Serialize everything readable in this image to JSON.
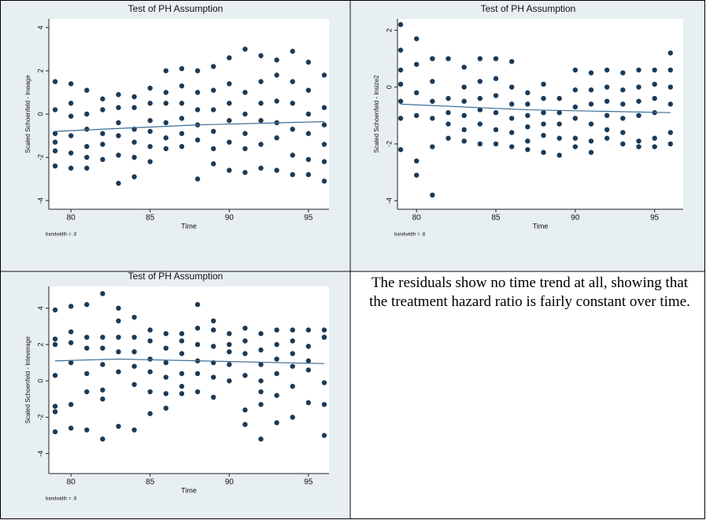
{
  "chart_data": [
    {
      "type": "scatter",
      "title": "Test of PH Assumption",
      "x_label": "Time",
      "y_label": "Scaled Schoenfeld - lnwage",
      "note": "bandwidth = .8",
      "color": "#1c3a56",
      "line_color": "#3a6c96",
      "xlim": [
        78.6,
        96.3
      ],
      "ylim": [
        -4.4,
        4.4
      ],
      "xticks": [
        80,
        85,
        90,
        95
      ],
      "yticks": [
        -4,
        -2,
        0,
        2,
        4
      ],
      "x": [
        79,
        79,
        79,
        79,
        79,
        79,
        80,
        80,
        80,
        80,
        80,
        80,
        81,
        81,
        81,
        81,
        81,
        81,
        82,
        82,
        82,
        82,
        82,
        83,
        83,
        83,
        83,
        83,
        83,
        84,
        84,
        84,
        84,
        84,
        84,
        85,
        85,
        85,
        85,
        85,
        85,
        86,
        86,
        86,
        86,
        86,
        86,
        87,
        87,
        87,
        87,
        87,
        87,
        88,
        88,
        88,
        88,
        88,
        88,
        89,
        89,
        89,
        89,
        89,
        89,
        90,
        90,
        90,
        90,
        90,
        90,
        91,
        91,
        91,
        91,
        91,
        91,
        92,
        92,
        92,
        92,
        92,
        92,
        93,
        93,
        93,
        93,
        93,
        93,
        94,
        94,
        94,
        94,
        94,
        94,
        95,
        95,
        95,
        95,
        95,
        95,
        96,
        96,
        96,
        96,
        96,
        96
      ],
      "values": [
        1.5,
        0.2,
        -0.9,
        -1.3,
        -1.7,
        -2.4,
        1.4,
        0.5,
        -0.1,
        -1.0,
        -1.8,
        -2.5,
        1.1,
        0.0,
        -0.7,
        -1.5,
        -2.0,
        -2.5,
        0.7,
        0.2,
        -0.9,
        -1.4,
        -2.1,
        0.9,
        0.3,
        -0.4,
        -1.0,
        -1.9,
        -3.2,
        0.8,
        0.3,
        -0.7,
        -1.3,
        -2.0,
        -2.9,
        1.2,
        0.5,
        -0.3,
        -0.8,
        -1.5,
        -2.2,
        2.0,
        1.0,
        0.5,
        -0.4,
        -1.1,
        -1.6,
        2.1,
        1.3,
        0.5,
        -0.2,
        -0.9,
        -1.5,
        2.0,
        1.0,
        0.2,
        -0.5,
        -1.2,
        -3.0,
        2.2,
        1.1,
        0.2,
        -0.8,
        -1.6,
        -2.3,
        2.6,
        1.4,
        0.5,
        -0.3,
        -1.3,
        -2.6,
        3.0,
        1.0,
        0.0,
        -0.9,
        -1.6,
        -2.7,
        2.7,
        1.5,
        0.5,
        -0.3,
        -1.4,
        -2.5,
        2.5,
        1.8,
        0.6,
        -0.4,
        -1.1,
        -2.6,
        2.9,
        1.5,
        0.5,
        -0.7,
        -1.9,
        -2.8,
        2.4,
        1.1,
        0.0,
        -0.9,
        -2.1,
        -2.8,
        1.8,
        0.3,
        -0.5,
        -1.4,
        -2.2,
        -3.1
      ],
      "smooth": {
        "x": [
          79,
          88,
          96
        ],
        "values": [
          -0.8,
          -0.5,
          -0.35
        ]
      }
    },
    {
      "type": "scatter",
      "title": "Test of PH Assumption",
      "x_label": "Time",
      "y_label": "Scaled Schoenfeld - lnsize2",
      "note": "bandwidth = .8",
      "color": "#1c3a56",
      "line_color": "#3a6c96",
      "xlim": [
        78.8,
        96.8
      ],
      "ylim": [
        -4.3,
        2.4
      ],
      "xticks": [
        80,
        85,
        90,
        95
      ],
      "yticks": [
        -4,
        -2,
        0,
        2
      ],
      "x": [
        79,
        79,
        79,
        79,
        79,
        79,
        79,
        80,
        80,
        80,
        80,
        80,
        80,
        81,
        81,
        81,
        81,
        81,
        81,
        82,
        82,
        82,
        82,
        82,
        83,
        83,
        83,
        83,
        83,
        83,
        84,
        84,
        84,
        84,
        84,
        84,
        85,
        85,
        85,
        85,
        85,
        85,
        86,
        86,
        86,
        86,
        86,
        86,
        87,
        87,
        87,
        87,
        87,
        87,
        88,
        88,
        88,
        88,
        88,
        88,
        89,
        89,
        89,
        89,
        89,
        90,
        90,
        90,
        90,
        90,
        90,
        91,
        91,
        91,
        91,
        91,
        91,
        92,
        92,
        92,
        92,
        92,
        92,
        93,
        93,
        93,
        93,
        93,
        93,
        94,
        94,
        94,
        94,
        94,
        94,
        95,
        95,
        95,
        95,
        95,
        95,
        96,
        96,
        96,
        96,
        96,
        96
      ],
      "values": [
        2.2,
        1.3,
        0.6,
        0.1,
        -0.5,
        -1.1,
        -2.2,
        1.7,
        0.8,
        -0.2,
        -1.0,
        -2.6,
        -3.1,
        1.0,
        0.2,
        -0.5,
        -1.1,
        -2.1,
        -3.8,
        1.0,
        -0.4,
        -0.9,
        -1.3,
        -1.8,
        0.7,
        0.0,
        -0.5,
        -1.0,
        -1.5,
        -1.9,
        1.0,
        0.2,
        -0.4,
        -0.8,
        -1.3,
        -2.0,
        1.0,
        0.3,
        -0.3,
        -0.9,
        -1.5,
        -2.0,
        0.9,
        0.0,
        -0.6,
        -1.1,
        -1.6,
        -2.1,
        -0.2,
        -0.6,
        -1.0,
        -1.4,
        -1.9,
        -2.2,
        0.1,
        -0.4,
        -0.9,
        -1.3,
        -1.7,
        -2.3,
        -0.4,
        -0.9,
        -1.3,
        -1.8,
        -2.4,
        0.6,
        -0.1,
        -0.7,
        -1.1,
        -1.8,
        -2.1,
        0.5,
        -0.1,
        -0.6,
        -1.3,
        -1.9,
        -2.3,
        0.6,
        0.0,
        -0.5,
        -1.0,
        -1.5,
        -1.8,
        0.5,
        -0.1,
        -0.6,
        -1.1,
        -1.6,
        -2.0,
        0.6,
        0.0,
        -0.5,
        -1.0,
        -1.9,
        -2.1,
        0.6,
        0.1,
        -0.4,
        -0.9,
        -1.8,
        -2.1,
        1.2,
        0.6,
        0.0,
        -0.6,
        -1.6,
        -2.0
      ],
      "smooth": {
        "x": [
          79,
          87,
          96
        ],
        "values": [
          -0.6,
          -0.8,
          -0.9
        ]
      }
    },
    {
      "type": "scatter",
      "title": "Test of PH Assumption",
      "x_label": "Time",
      "y_label": "Scaled Schoenfeld - lnleverage",
      "note": "bandwidth = .8",
      "color": "#1c3a56",
      "line_color": "#3a6c96",
      "xlim": [
        78.6,
        96.3
      ],
      "ylim": [
        -5.1,
        5.2
      ],
      "xticks": [
        80,
        85,
        90,
        95
      ],
      "yticks": [
        -4,
        -2,
        0,
        2,
        4
      ],
      "x": [
        79,
        79,
        79,
        79,
        79,
        79,
        79,
        80,
        80,
        80,
        80,
        80,
        80,
        81,
        81,
        81,
        81,
        81,
        81,
        82,
        82,
        82,
        82,
        82,
        82,
        82,
        83,
        83,
        83,
        83,
        83,
        83,
        84,
        84,
        84,
        84,
        84,
        84,
        85,
        85,
        85,
        85,
        85,
        85,
        86,
        86,
        86,
        86,
        86,
        86,
        87,
        87,
        87,
        87,
        87,
        87,
        88,
        88,
        88,
        88,
        88,
        88,
        89,
        89,
        89,
        89,
        89,
        89,
        90,
        90,
        90,
        90,
        90,
        91,
        91,
        91,
        91,
        91,
        91,
        92,
        92,
        92,
        92,
        92,
        92,
        92,
        93,
        93,
        93,
        93,
        93,
        93,
        94,
        94,
        94,
        94,
        94,
        94,
        95,
        95,
        95,
        95,
        95,
        96,
        96,
        96,
        96,
        96,
        96
      ],
      "values": [
        3.9,
        2.3,
        2.0,
        0.3,
        -1.4,
        -1.7,
        -2.8,
        4.1,
        2.7,
        2.1,
        1.0,
        -1.3,
        -2.6,
        4.2,
        2.4,
        1.8,
        0.4,
        -0.6,
        -2.7,
        4.8,
        2.4,
        1.8,
        0.9,
        -0.5,
        -1.0,
        -3.2,
        4.0,
        3.3,
        2.4,
        1.6,
        0.5,
        -2.5,
        3.5,
        2.4,
        1.6,
        0.8,
        -0.2,
        -2.7,
        2.8,
        2.2,
        1.2,
        0.5,
        -0.6,
        -1.8,
        2.6,
        1.8,
        1.0,
        0.2,
        -0.7,
        -1.5,
        2.6,
        2.2,
        1.5,
        0.4,
        -0.3,
        -0.7,
        4.2,
        2.9,
        2.0,
        1.1,
        0.4,
        -0.6,
        3.3,
        2.8,
        1.9,
        1.0,
        0.2,
        -0.9,
        2.6,
        2.0,
        1.6,
        0.9,
        0.0,
        2.9,
        2.2,
        1.5,
        0.3,
        -1.6,
        -2.4,
        2.6,
        1.7,
        0.9,
        0.0,
        -0.6,
        -1.3,
        -3.2,
        2.8,
        2.0,
        1.2,
        0.4,
        -0.8,
        -2.3,
        2.8,
        2.2,
        1.5,
        0.8,
        -0.3,
        -2.0,
        2.8,
        1.9,
        1.1,
        0.6,
        -1.2,
        2.8,
        2.4,
        2.4,
        -0.1,
        -1.3,
        -3.0
      ],
      "smooth": {
        "x": [
          79,
          83,
          96
        ],
        "values": [
          1.1,
          1.2,
          0.95
        ]
      }
    }
  ],
  "text": "The residuals show no time trend at all, showing that the treatment hazard ratio is fairly constant over time."
}
